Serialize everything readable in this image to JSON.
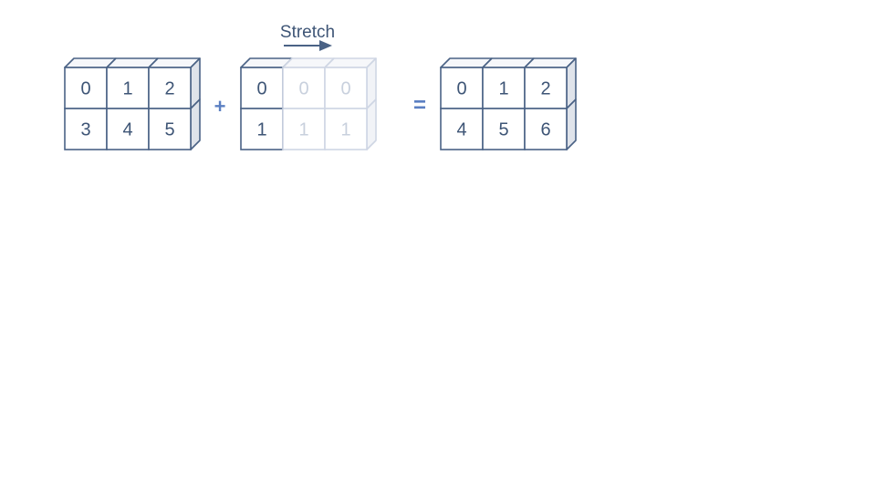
{
  "colors": {
    "stroke": "#4a6285",
    "text": "#3e5576",
    "operator": "#5b7fc2",
    "ghost_stroke": "#cfd6e4",
    "ghost_text": "#c8d0dd",
    "top_face": "#f6f7fa",
    "side_face": "#dfe3ea",
    "background": "#ffffff"
  },
  "diagram": {
    "stretch_label": "Stretch",
    "plus_symbol": "+",
    "equals_symbol": "=",
    "matrices": [
      {
        "id": "matrix-a",
        "rows": [
          [
            "0",
            "1",
            "2"
          ],
          [
            "3",
            "4",
            "5"
          ]
        ],
        "ghost": [
          [
            false,
            false,
            false
          ],
          [
            false,
            false,
            false
          ]
        ]
      },
      {
        "id": "matrix-b-broadcast",
        "rows": [
          [
            "0",
            "0",
            "0"
          ],
          [
            "1",
            "1",
            "1"
          ]
        ],
        "ghost": [
          [
            false,
            true,
            true
          ],
          [
            false,
            true,
            true
          ]
        ]
      },
      {
        "id": "matrix-result",
        "rows": [
          [
            "0",
            "1",
            "2"
          ],
          [
            "4",
            "5",
            "6"
          ]
        ],
        "ghost": [
          [
            false,
            false,
            false
          ],
          [
            false,
            false,
            false
          ]
        ]
      }
    ]
  }
}
